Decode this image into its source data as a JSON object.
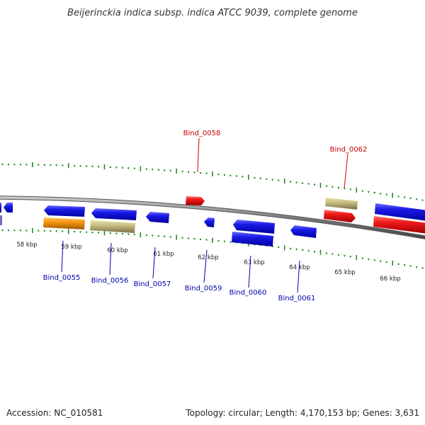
{
  "title": "Beijerinckia indica subsp. indica ATCC 9039, complete genome",
  "footer": {
    "accession": "Accession: NC_010581",
    "stats": "Topology: circular; Length: 4,170,153 bp; Genes: 3,631"
  },
  "colors": {
    "cds": "#1a1ae6",
    "rna": "#e61a1a",
    "orange": "#f5960f",
    "khaki": "#c8be82",
    "tick": "#1e8c1e",
    "backbone": "#8a8a8a",
    "label_forward": "#cc0000",
    "label_reverse": "#0000aa"
  },
  "scale": {
    "labels": [
      "58 kbp",
      "59 kbp",
      "60 kbp",
      "61 kbp",
      "62 kbp",
      "63 kbp",
      "64 kbp",
      "65 kbp",
      "66 kbp"
    ]
  },
  "gene_labels": [
    {
      "text": "Bind_0058",
      "strand": "forward"
    },
    {
      "text": "Bind_0062",
      "strand": "forward"
    },
    {
      "text": "Bind_0055",
      "strand": "reverse"
    },
    {
      "text": "Bind_0056",
      "strand": "reverse"
    },
    {
      "text": "Bind_0057",
      "strand": "reverse"
    },
    {
      "text": "Bind_0059",
      "strand": "reverse"
    },
    {
      "text": "Bind_0060",
      "strand": "reverse"
    },
    {
      "text": "Bind_0061",
      "strand": "reverse"
    }
  ]
}
